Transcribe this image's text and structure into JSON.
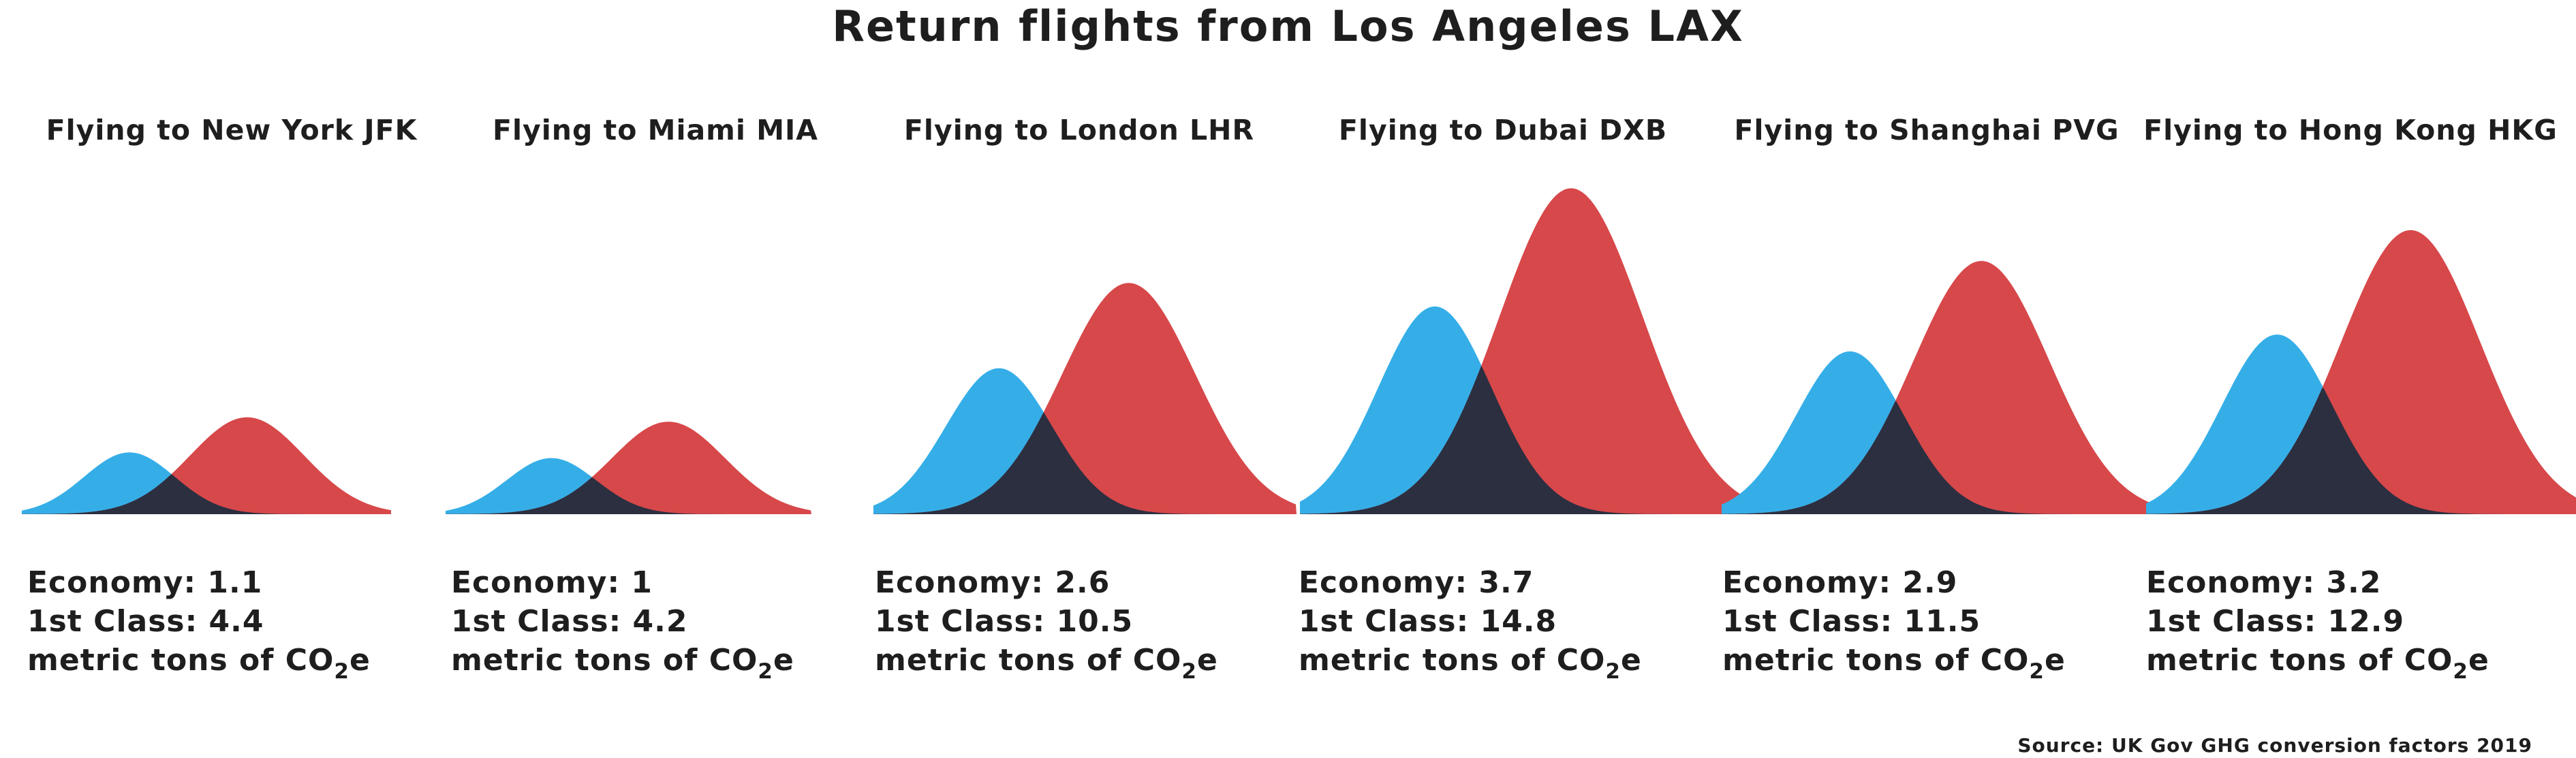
{
  "title": "Return flights from Los Angeles LAX",
  "source": "Source: UK Gov GHG conversion factors 2019",
  "colors": {
    "economy": "#35aee8",
    "first_class": "#d7484a",
    "overlap": "#2b2f40",
    "text": "#1e1e1e"
  },
  "chart_data": {
    "type": "area",
    "series": [
      {
        "name": "Economy"
      },
      {
        "name": "1st Class"
      }
    ],
    "unit": "metric tons of CO2e",
    "panels": [
      {
        "title": "Flying to New York JFK",
        "economy": 1.1,
        "first_class": 4.4,
        "economy_label": "Economy: 1.1",
        "first_class_label": "1st Class: 4.4"
      },
      {
        "title": "Flying to Miami MIA",
        "economy": 1,
        "first_class": 4.2,
        "economy_label": "Economy: 1",
        "first_class_label": "1st Class: 4.2"
      },
      {
        "title": "Flying to London LHR",
        "economy": 2.6,
        "first_class": 10.5,
        "economy_label": "Economy: 2.6",
        "first_class_label": "1st Class: 10.5"
      },
      {
        "title": "Flying to Dubai DXB",
        "economy": 3.7,
        "first_class": 14.8,
        "economy_label": "Economy: 3.7",
        "first_class_label": "1st Class: 14.8"
      },
      {
        "title": "Flying to Shanghai PVG",
        "economy": 2.9,
        "first_class": 11.5,
        "economy_label": "Economy: 2.9",
        "first_class_label": "1st Class: 11.5"
      },
      {
        "title": "Flying to Hong Kong HKG",
        "economy": 3.2,
        "first_class": 12.9,
        "economy_label": "Economy: 3.2",
        "first_class_label": "1st Class: 12.9"
      }
    ],
    "unit_label_prefix": "metric tons of CO",
    "unit_label_subscript": "2",
    "unit_label_suffix": "e"
  }
}
